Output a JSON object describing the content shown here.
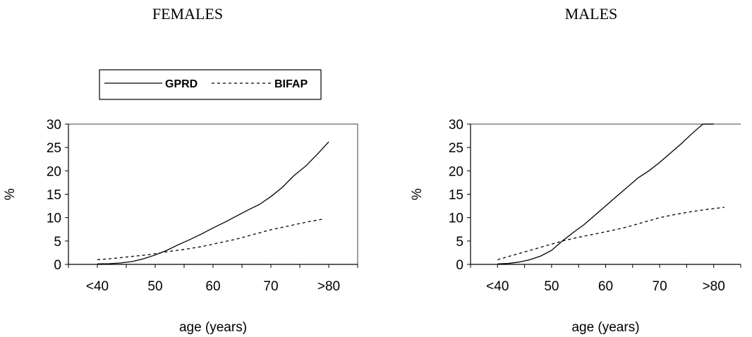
{
  "chart_data": [
    {
      "type": "line",
      "title": "FEMALES",
      "xlabel": "age (years)",
      "ylabel": "%",
      "x_tick_labels": [
        "<40",
        "50",
        "60",
        "70",
        ">80"
      ],
      "y_ticks": [
        0,
        5,
        10,
        15,
        20,
        25,
        30
      ],
      "ylim": [
        0,
        30
      ],
      "xlim": [
        35,
        85
      ],
      "grid": false,
      "legend": "top-left, above plot",
      "series": [
        {
          "name": "GPRD",
          "style": "solid",
          "x": [
            40,
            42,
            44,
            46,
            48,
            50,
            52,
            54,
            56,
            58,
            60,
            62,
            64,
            66,
            68,
            70,
            72,
            74,
            76,
            78,
            80
          ],
          "y": [
            0.1,
            0.15,
            0.3,
            0.6,
            1.2,
            2.0,
            3.0,
            4.2,
            5.3,
            6.5,
            7.8,
            9.0,
            10.3,
            11.6,
            12.8,
            14.5,
            16.5,
            19.0,
            21.0,
            23.5,
            26.2
          ]
        },
        {
          "name": "BIFAP",
          "style": "dashed",
          "x": [
            40,
            43,
            46,
            49,
            52,
            55,
            58,
            61,
            64,
            67,
            70,
            73,
            76,
            79
          ],
          "y": [
            1.0,
            1.3,
            1.7,
            2.1,
            2.7,
            3.2,
            3.8,
            4.6,
            5.4,
            6.4,
            7.4,
            8.2,
            9.0,
            9.7
          ]
        }
      ]
    },
    {
      "type": "line",
      "title": "MALES",
      "xlabel": "age (years)",
      "ylabel": "%",
      "x_tick_labels": [
        "<40",
        "50",
        "60",
        "70",
        ">80"
      ],
      "y_ticks": [
        0,
        5,
        10,
        15,
        20,
        25,
        30
      ],
      "ylim": [
        0,
        30
      ],
      "xlim": [
        35,
        85
      ],
      "grid": false,
      "series": [
        {
          "name": "GPRD",
          "style": "solid",
          "x": [
            40,
            42,
            44,
            46,
            48,
            50,
            52,
            54,
            56,
            58,
            60,
            62,
            64,
            66,
            68,
            70,
            72,
            74,
            76,
            78,
            80
          ],
          "y": [
            0.1,
            0.2,
            0.5,
            1.0,
            1.8,
            3.0,
            5.0,
            6.8,
            8.5,
            10.5,
            12.5,
            14.5,
            16.5,
            18.5,
            20.0,
            21.8,
            23.8,
            25.8,
            28.0,
            30.0,
            30.0
          ]
        },
        {
          "name": "BIFAP",
          "style": "dashed",
          "x": [
            40,
            43,
            46,
            49,
            52,
            55,
            58,
            61,
            64,
            67,
            70,
            73,
            76,
            79,
            82
          ],
          "y": [
            1.0,
            2.0,
            3.0,
            4.0,
            5.0,
            5.8,
            6.5,
            7.2,
            8.0,
            9.0,
            10.0,
            10.7,
            11.3,
            11.8,
            12.2
          ]
        }
      ]
    }
  ]
}
